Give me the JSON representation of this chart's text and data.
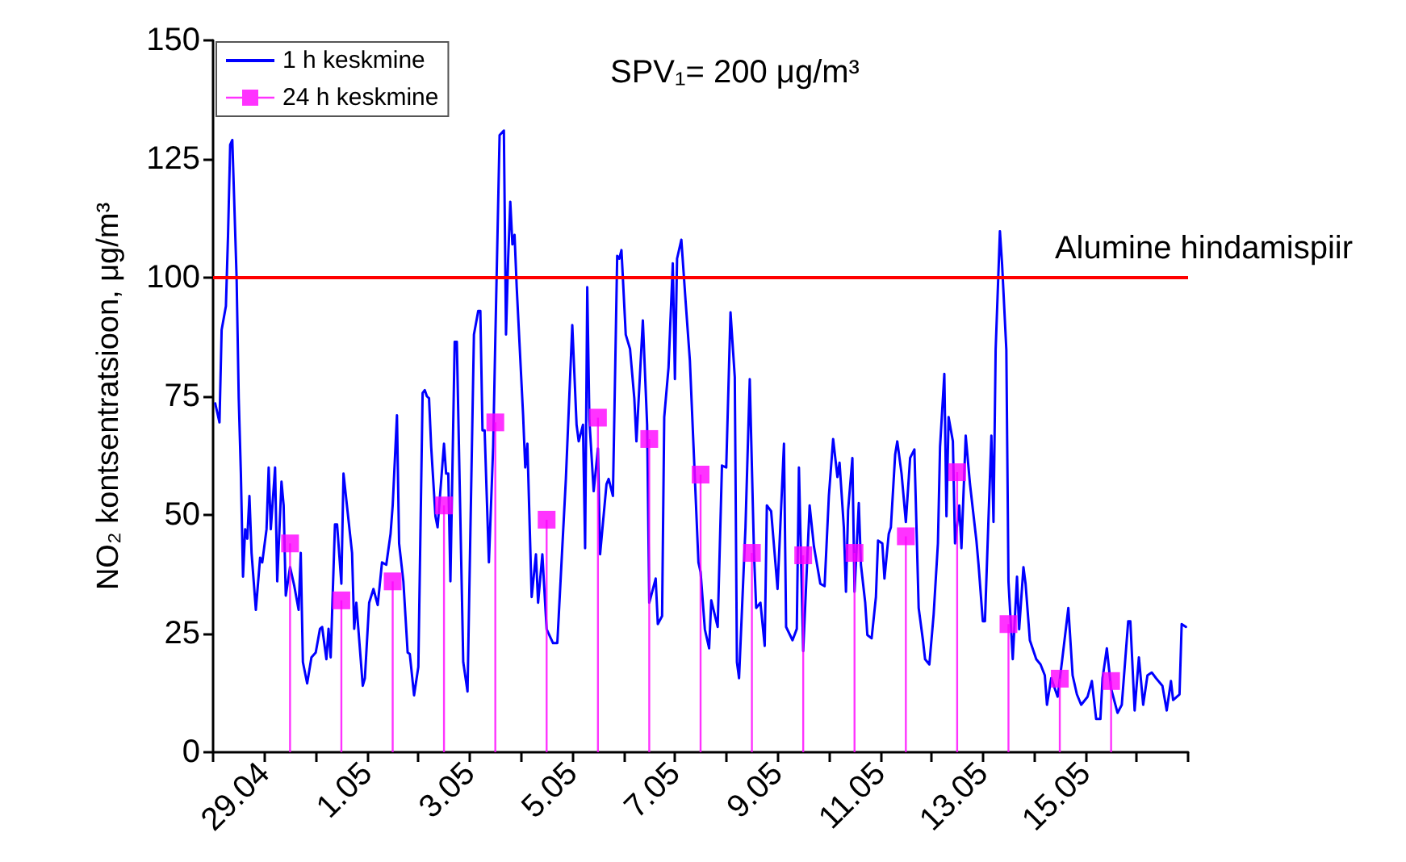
{
  "chart_data": {
    "type": "line",
    "ylabel": "NO₂ kontsentratsioon, μg/m³",
    "annotations": [
      "SPV₁= 200 μg/m³"
    ],
    "xlim": [
      "--04-28",
      "--05-17"
    ],
    "xticks": [
      {
        "value": "--04-28",
        "label": null
      },
      {
        "value": "--04-29",
        "label": "29.04"
      },
      {
        "value": "--04-30",
        "label": null
      },
      {
        "value": "--05-01",
        "label": "1.05"
      },
      {
        "value": "--05-02",
        "label": null
      },
      {
        "value": "--05-03",
        "label": "3.05"
      },
      {
        "value": "--05-04",
        "label": null
      },
      {
        "value": "--05-05",
        "label": "5.05"
      },
      {
        "value": "--05-06",
        "label": null
      },
      {
        "value": "--05-07",
        "label": "7.05"
      },
      {
        "value": "--05-08",
        "label": null
      },
      {
        "value": "--05-09",
        "label": "9.05"
      },
      {
        "value": "--05-10",
        "label": null
      },
      {
        "value": "--05-11",
        "label": "11.05"
      },
      {
        "value": "--05-12",
        "label": null
      },
      {
        "value": "--05-13",
        "label": "13.05"
      },
      {
        "value": "--05-14",
        "label": null
      },
      {
        "value": "--05-15",
        "label": "15.05"
      },
      {
        "value": "--05-16",
        "label": null
      },
      {
        "value": "--05-17",
        "label": null
      }
    ],
    "ylim": [
      0,
      150
    ],
    "yticks": [
      0,
      25,
      50,
      75,
      100,
      125,
      150
    ],
    "grid": false,
    "legend": "top left",
    "ref_lines": [
      {
        "axis": "y",
        "value": 100,
        "label": "Alumine hindamispiir",
        "color": "#ff0000",
        "line_style": "solid"
      }
    ],
    "series": [
      {
        "name": "1 h keskmine",
        "color": "#0000ff",
        "marker": "none",
        "line_style": "solid",
        "x": [
          "--04-28T01:00",
          "--04-28T03:00",
          "--04-28T04:00",
          "--04-28T06:00",
          "--04-28T07:00",
          "--04-28T08:00",
          "--04-28T09:00",
          "--04-28T11:00",
          "--04-28T12:00",
          "--04-28T13:00",
          "--04-28T14:00",
          "--04-28T15:00",
          "--04-28T16:00",
          "--04-28T17:00",
          "--04-28T18:00",
          "--04-28T20:00",
          "--04-28T22:00",
          "--04-28T23:00",
          "--04-29T01:00",
          "--04-29T02:00",
          "--04-29T03:00",
          "--04-29T05:00",
          "--04-29T06:00",
          "--04-29T08:00",
          "--04-29T09:00",
          "--04-29T10:00",
          "--04-29T12:00",
          "--04-29T14:00",
          "--04-29T16:00",
          "--04-29T17:00",
          "--04-29T18:00",
          "--04-29T20:00",
          "--04-29T22:00",
          "--04-30T00:00",
          "--04-30T02:00",
          "--04-30T03:00",
          "--04-30T05:00",
          "--04-30T06:00",
          "--04-30T07:00",
          "--04-30T09:00",
          "--04-30T10:00",
          "--04-30T12:00",
          "--04-30T13:00",
          "--04-30T17:00",
          "--04-30T18:00",
          "--04-30T19:00",
          "--04-30T22:00",
          "--04-30T23:00",
          "--05-01T01:00",
          "--05-01T03:00",
          "--05-01T05:00",
          "--05-01T07:00",
          "--05-01T09:00",
          "--05-01T11:00",
          "--05-01T12:00",
          "--05-01T14:00",
          "--05-01T15:00",
          "--05-01T17:00",
          "--05-01T19:00",
          "--05-01T20:00",
          "--05-01T22:00",
          "--05-02T00:00",
          "--05-02T02:00",
          "--05-02T03:00",
          "--05-02T04:00",
          "--05-02T05:00",
          "--05-02T06:00",
          "--05-02T08:00",
          "--05-02T09:00",
          "--05-02T12:00",
          "--05-02T13:00",
          "--05-02T14:00",
          "--05-02T15:00",
          "--05-02T17:00",
          "--05-02T18:00",
          "--05-02T21:00",
          "--05-02T23:00",
          "--05-03T02:00",
          "--05-03T04:00",
          "--05-03T05:00",
          "--05-03T06:00",
          "--05-03T07:00",
          "--05-03T09:00",
          "--05-03T11:00",
          "--05-03T12:00",
          "--05-03T14:00",
          "--05-03T16:00",
          "--05-03T17:00",
          "--05-03T18:00",
          "--05-03T19:00",
          "--05-03T20:00",
          "--05-03T21:00",
          "--05-03T22:00",
          "--05-04T01:00",
          "--05-04T02:00",
          "--05-04T03:00",
          "--05-04T05:00",
          "--05-04T07:00",
          "--05-04T08:00",
          "--05-04T10:00",
          "--05-04T12:00",
          "--05-04T15:00",
          "--05-04T17:00",
          "--05-04T21:00",
          "--05-05T00:00",
          "--05-05T02:00",
          "--05-05T03:00",
          "--05-05T05:00",
          "--05-05T06:00",
          "--05-05T07:00",
          "--05-05T08:00",
          "--05-05T10:00",
          "--05-05T12:00",
          "--05-05T13:00",
          "--05-05T16:00",
          "--05-05T17:00",
          "--05-05T19:00",
          "--05-05T21:00",
          "--05-05T22:00",
          "--05-05T23:00",
          "--05-06T01:00",
          "--05-06T03:00",
          "--05-06T05:00",
          "--05-06T06:00",
          "--05-06T09:00",
          "--05-06T11:00",
          "--05-06T12:00",
          "--05-06T15:00",
          "--05-06T16:00",
          "--05-06T18:00",
          "--05-06T19:00",
          "--05-06T21:00",
          "--05-06T23:00",
          "--05-07T00:00",
          "--05-07T01:00",
          "--05-07T03:00",
          "--05-07T05:00",
          "--05-07T07:00",
          "--05-07T11:00",
          "--05-07T12:00",
          "--05-07T14:00",
          "--05-07T16:00",
          "--05-07T17:00",
          "--05-07T20:00",
          "--05-07T22:00",
          "--05-08T00:00",
          "--05-08T02:00",
          "--05-08T04:00",
          "--05-08T05:00",
          "--05-08T06:00",
          "--05-08T09:00",
          "--05-08T11:00",
          "--05-08T13:00",
          "--05-08T14:00",
          "--05-08T16:00",
          "--05-08T18:00",
          "--05-08T19:00",
          "--05-08T21:00",
          "--05-09T00:00",
          "--05-09T03:00",
          "--05-09T04:00",
          "--05-09T07:00",
          "--05-09T09:00",
          "--05-09T10:00",
          "--05-09T12:00",
          "--05-09T15:00",
          "--05-09T17:00",
          "--05-09T20:00",
          "--05-09T22:00",
          "--05-10T00:00",
          "--05-10T02:00",
          "--05-10T04:00",
          "--05-10T05:00",
          "--05-10T07:00",
          "--05-10T08:00",
          "--05-10T09:00",
          "--05-10T11:00",
          "--05-10T12:00",
          "--05-10T14:00",
          "--05-10T15:00",
          "--05-10T17:00",
          "--05-10T18:00",
          "--05-10T20:00",
          "--05-10T22:00",
          "--05-10T23:00",
          "--05-11T01:00",
          "--05-11T02:00",
          "--05-11T04:00",
          "--05-11T05:00",
          "--05-11T07:00",
          "--05-11T08:00",
          "--05-11T10:00",
          "--05-11T12:00",
          "--05-11T14:00",
          "--05-11T16:00",
          "--05-11T18:00",
          "--05-11T20:00",
          "--05-11T21:00",
          "--05-11T23:00",
          "--05-12T01:00",
          "--05-12T03:00",
          "--05-12T04:00",
          "--05-12T06:00",
          "--05-12T07:00",
          "--05-12T08:00",
          "--05-12T10:00",
          "--05-12T11:00",
          "--05-12T13:00",
          "--05-12T14:00",
          "--05-12T16:00",
          "--05-12T18:00",
          "--05-12T21:00",
          "--05-12T22:00",
          "--05-13T00:00",
          "--05-13T01:00",
          "--05-13T04:00",
          "--05-13T05:00",
          "--05-13T06:00",
          "--05-13T08:00",
          "--05-13T09:00",
          "--05-13T11:00",
          "--05-13T12:00",
          "--05-13T14:00",
          "--05-13T16:00",
          "--05-13T17:00",
          "--05-13T19:00",
          "--05-13T20:00",
          "--05-13T22:00",
          "--05-14T01:00",
          "--05-14T03:00",
          "--05-14T05:00",
          "--05-14T06:00",
          "--05-14T08:00",
          "--05-14T11:00",
          "--05-14T13:00",
          "--05-14T16:00",
          "--05-14T18:00",
          "--05-14T20:00",
          "--05-14T22:00",
          "--05-15T01:00",
          "--05-15T03:00",
          "--05-15T05:00",
          "--05-15T07:00",
          "--05-15T08:00",
          "--05-15T10:00",
          "--05-15T12:00",
          "--05-15T15:00",
          "--05-15T17:00",
          "--05-15T20:00",
          "--05-15T21:00",
          "--05-15T23:00",
          "--05-16T01:00",
          "--05-16T03:00",
          "--05-16T05:00",
          "--05-16T07:00",
          "--05-16T09:00",
          "--05-16T12:00",
          "--05-16T14:00",
          "--05-16T16:00",
          "--05-16T17:00",
          "--05-16T20:00",
          "--05-16T21:00",
          "--05-16T23:00"
        ],
        "values": [
          73.5,
          69.5,
          89,
          94,
          109,
          128,
          129,
          100,
          74.6,
          58.7,
          37,
          47,
          45,
          54,
          42,
          30,
          41,
          40,
          47,
          60,
          47,
          60,
          36,
          57,
          52,
          33,
          39,
          35,
          30,
          42,
          19,
          14.5,
          20,
          21,
          26,
          26.4,
          19.6,
          26,
          20,
          48,
          48,
          35.5,
          58.7,
          42,
          26,
          31.5,
          14,
          15.6,
          31.5,
          34.4,
          31,
          40,
          39.5,
          46,
          52,
          71,
          44,
          36,
          21,
          20.7,
          12,
          18,
          75.7,
          76.3,
          75,
          74.6,
          64.4,
          49.7,
          47.4,
          65,
          58.7,
          58.7,
          36,
          86.5,
          86.5,
          19,
          12.8,
          88,
          93,
          93,
          67.8,
          67.8,
          40,
          64.4,
          87,
          130,
          131,
          88,
          104,
          116,
          107,
          109,
          98,
          71,
          60,
          65,
          32.7,
          41.7,
          31.5,
          41.7,
          25.9,
          23,
          23,
          57.6,
          90,
          69,
          65.5,
          69,
          43,
          98,
          70,
          55,
          64,
          41.7,
          56.5,
          57.6,
          54,
          104.6,
          104,
          105.8,
          88,
          85,
          74.6,
          65.5,
          91,
          69,
          31.5,
          36.6,
          27,
          28.7,
          70.6,
          81,
          103,
          78.6,
          104,
          108,
          95,
          82.5,
          40,
          38,
          25.9,
          21.9,
          32,
          26.4,
          60.4,
          60,
          92.7,
          79,
          19,
          15.6,
          47.4,
          78.6,
          41.7,
          30.4,
          31.5,
          22.4,
          52,
          50.8,
          34.4,
          65,
          26.4,
          23.6,
          26,
          60,
          21.3,
          52,
          43.4,
          35.5,
          35,
          54,
          66,
          58,
          61,
          47.4,
          33.8,
          51,
          62,
          33.8,
          52.5,
          39.5,
          31.5,
          24.7,
          24,
          32.7,
          44.6,
          44,
          36.6,
          46,
          47.4,
          62.7,
          65.5,
          58.7,
          48.5,
          62,
          63.8,
          30.4,
          23.6,
          19.6,
          18.5,
          29,
          44,
          64.4,
          79.7,
          49.7,
          70.6,
          65.5,
          44,
          52,
          43,
          66.7,
          56.5,
          44.6,
          39.5,
          27.6,
          27.6,
          66.7,
          48.5,
          84.8,
          109.8,
          103,
          84.8,
          36,
          19.6,
          37,
          25.9,
          39,
          35.5,
          23.6,
          19.6,
          18.5,
          16.2,
          10,
          15.6,
          11.7,
          19,
          30.4,
          16.2,
          12.2,
          10,
          11.7,
          15,
          7,
          7,
          15.6,
          21.9,
          13.4,
          8.3,
          10,
          27.6,
          27.6,
          8.8,
          20,
          10,
          16.2,
          16.8,
          15.6,
          14,
          8.8,
          15,
          11,
          12.2,
          27,
          26.4
        ]
      },
      {
        "name": "24 h keskmine",
        "type": "lollipop",
        "color": "#ff00ff",
        "marker": "square",
        "x": [
          "--04-29T12:00",
          "--04-30T12:00",
          "--05-01T12:00",
          "--05-02T12:00",
          "--05-03T12:00",
          "--05-04T12:00",
          "--05-05T12:00",
          "--05-06T12:00",
          "--05-07T12:00",
          "--05-08T12:00",
          "--05-09T12:00",
          "--05-10T12:00",
          "--05-11T12:00",
          "--05-12T12:00",
          "--05-13T12:00",
          "--05-14T12:00",
          "--05-15T12:00"
        ],
        "values": [
          44,
          32,
          36,
          52,
          69.5,
          49,
          70.5,
          66,
          58.5,
          42,
          41.5,
          42,
          45.5,
          59,
          27,
          15.5,
          15
        ]
      }
    ]
  }
}
